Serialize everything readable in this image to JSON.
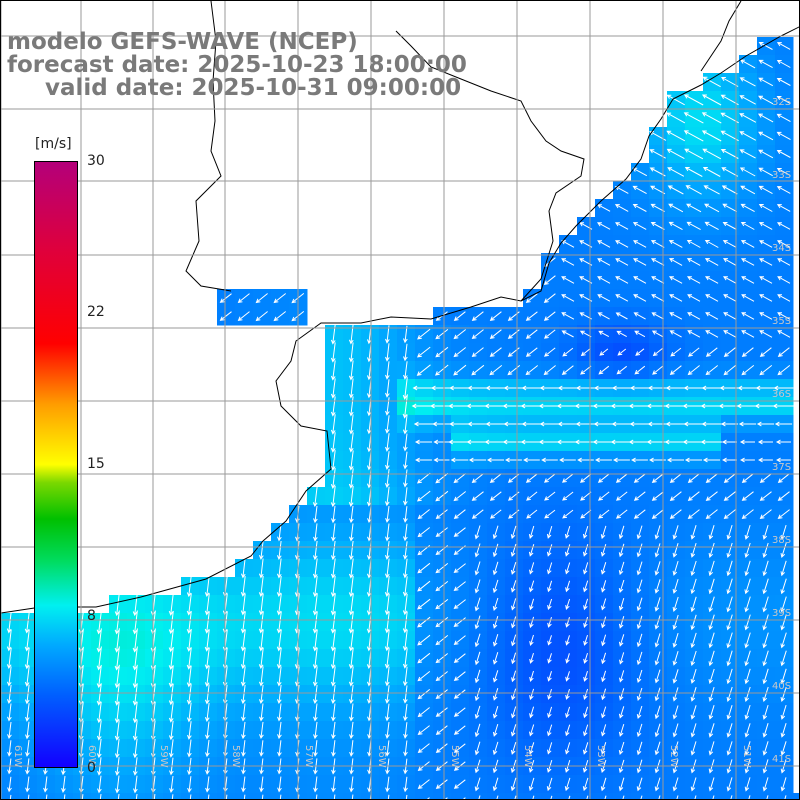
{
  "title": {
    "line1": "modelo GEFS-WAVE (NCEP)",
    "line2": "forecast date: 2025-10-23 18:00:00",
    "line3": "valid date: 2025-10-31 09:00:00"
  },
  "colorbar": {
    "unit": "[m/s]",
    "ticks": [
      "30",
      "22",
      "15",
      "8",
      "0"
    ],
    "tick_values": [
      30,
      22,
      15,
      8,
      0
    ],
    "range": [
      0,
      30
    ],
    "colors": [
      "#1200ff",
      "#0060ff",
      "#00a8ff",
      "#00f0f0",
      "#00dc60",
      "#00c000",
      "#ffff00",
      "#ff9c00",
      "#ff0000",
      "#b4007a"
    ]
  },
  "map": {
    "lat_labels": [
      "32S",
      "33S",
      "34S",
      "35S",
      "36S",
      "37S",
      "38S",
      "39S",
      "40S",
      "41S"
    ],
    "lon_labels": [
      "61W",
      "60W",
      "59W",
      "58W",
      "57W",
      "56W",
      "55W",
      "54W",
      "53W",
      "52W",
      "51W"
    ],
    "land_color": "#ffffff",
    "coast_color": "#000000",
    "grid_color": "#9a9a9a",
    "arrow_color": "#ffffff",
    "prevailing_wind": "southward near coast, westward offshore"
  }
}
